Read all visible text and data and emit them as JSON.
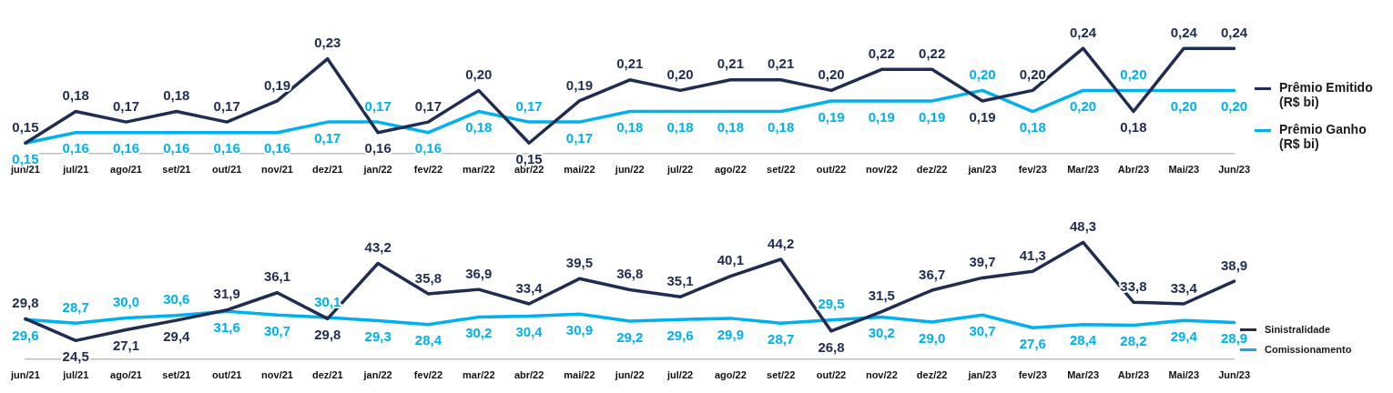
{
  "chart_data": [
    {
      "type": "line",
      "categories": [
        "jun/21",
        "jul/21",
        "ago/21",
        "set/21",
        "out/21",
        "nov/21",
        "dez/21",
        "jan/22",
        "fev/22",
        "mar/22",
        "abr/22",
        "mai/22",
        "jun/22",
        "jul/22",
        "ago/22",
        "set/22",
        "out/22",
        "nov/22",
        "dez/22",
        "jan/23",
        "fev/23",
        "Mar/23",
        "Abr/23",
        "Mai/23",
        "Jun/23"
      ],
      "series": [
        {
          "name": "Prêmio Emitido (R$ bi)",
          "color": "#1f2d54",
          "values": [
            0.15,
            0.18,
            0.17,
            0.18,
            0.17,
            0.19,
            0.23,
            0.16,
            0.17,
            0.2,
            0.15,
            0.19,
            0.21,
            0.2,
            0.21,
            0.21,
            0.2,
            0.22,
            0.22,
            0.19,
            0.2,
            0.24,
            0.18,
            0.24,
            0.24
          ],
          "value_labels": [
            "0,15",
            "0,18",
            "0,17",
            "0,18",
            "0,17",
            "0,19",
            "0,23",
            "0,16",
            "0,17",
            "0,20",
            "0,15",
            "0,19",
            "0,21",
            "0,20",
            "0,21",
            "0,21",
            "0,20",
            "0,22",
            "0,22",
            "0,19",
            "0,20",
            "0,24",
            "0,18",
            "0,24",
            "0,24"
          ]
        },
        {
          "name": "Prêmio Ganho (R$ bi)",
          "color": "#00b0f0",
          "values": [
            0.15,
            0.16,
            0.16,
            0.16,
            0.16,
            0.16,
            0.17,
            0.17,
            0.16,
            0.18,
            0.17,
            0.17,
            0.18,
            0.18,
            0.18,
            0.18,
            0.19,
            0.19,
            0.19,
            0.2,
            0.18,
            0.2,
            0.2,
            0.2,
            0.2
          ],
          "value_labels": [
            "0,15",
            "0,16",
            "0,16",
            "0,16",
            "0,16",
            "0,16",
            "0,17",
            "0,17",
            "0,16",
            "0,18",
            "0,17",
            "0,17",
            "0,18",
            "0,18",
            "0,18",
            "0,18",
            "0,19",
            "0,19",
            "0,19",
            "0,20",
            "0,18",
            "0,20",
            "0,20",
            "0,20",
            "0,20"
          ]
        }
      ],
      "marker": "none",
      "grid": false,
      "legend": "right"
    },
    {
      "type": "line",
      "categories": [
        "jun/21",
        "jul/21",
        "ago/21",
        "set/21",
        "out/21",
        "nov/21",
        "dez/21",
        "jan/22",
        "fev/22",
        "mar/22",
        "abr/22",
        "mai/22",
        "jun/22",
        "jul/22",
        "ago/22",
        "set/22",
        "out/22",
        "nov/22",
        "dez/22",
        "jan/23",
        "fev/23",
        "Mar/23",
        "Abr/23",
        "Mai/23",
        "Jun/23"
      ],
      "series": [
        {
          "name": "Sinistralidade",
          "color": "#1f2d54",
          "values": [
            29.8,
            24.5,
            27.1,
            29.4,
            31.9,
            36.1,
            29.8,
            43.2,
            35.8,
            36.9,
            33.4,
            39.5,
            36.8,
            35.1,
            40.1,
            44.2,
            26.8,
            31.5,
            36.7,
            39.7,
            41.3,
            48.3,
            33.8,
            33.4,
            38.9
          ],
          "value_labels": [
            "29,8",
            "24,5",
            "27,1",
            "29,4",
            "31,9",
            "36,1",
            "29,8",
            "43,2",
            "35,8",
            "36,9",
            "33,4",
            "39,5",
            "36,8",
            "35,1",
            "40,1",
            "44,2",
            "26,8",
            "31,5",
            "36,7",
            "39,7",
            "41,3",
            "48,3",
            "33,8",
            "33,4",
            "38,9"
          ]
        },
        {
          "name": "Comissionamento",
          "color": "#00b0f0",
          "values": [
            29.6,
            28.7,
            30.0,
            30.6,
            31.6,
            30.7,
            30.1,
            29.3,
            28.4,
            30.2,
            30.4,
            30.9,
            29.2,
            29.6,
            29.9,
            28.7,
            29.5,
            30.2,
            29.0,
            30.7,
            27.6,
            28.4,
            28.2,
            29.4,
            28.9
          ],
          "value_labels": [
            "29,6",
            "28,7",
            "30,0",
            "30,6",
            "31,6",
            "30,7",
            "30,1",
            "29,3",
            "28,4",
            "30,2",
            "30,4",
            "30,9",
            "29,2",
            "29,6",
            "29,9",
            "28,7",
            "29,5",
            "30,2",
            "29,0",
            "30,7",
            "27,6",
            "28,4",
            "28,2",
            "29,4",
            "28,9"
          ]
        }
      ],
      "marker": "none",
      "grid": false,
      "legend": "bottom right"
    }
  ]
}
